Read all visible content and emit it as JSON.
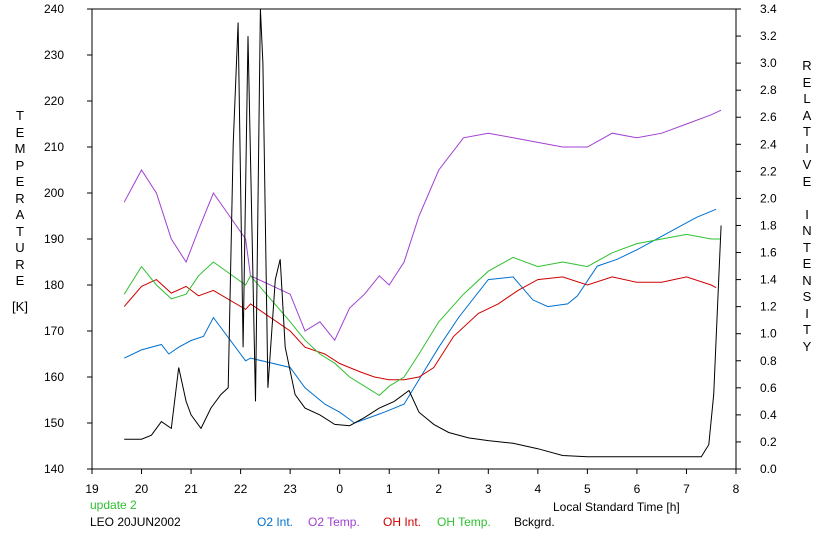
{
  "chart_data": {
    "type": "line",
    "xlabel": "Local Standard Time [h]",
    "x_ticks": [
      "19",
      "20",
      "21",
      "22",
      "23",
      "0",
      "1",
      "2",
      "3",
      "4",
      "5",
      "6",
      "7",
      "8"
    ],
    "xlim": [
      19,
      32
    ],
    "ylabel_left_letters": [
      "T",
      "E",
      "M",
      "P",
      "E",
      "R",
      "A",
      "T",
      "U",
      "R",
      "E"
    ],
    "ylabel_left_unit": "[K]",
    "ylim_left": [
      140,
      240
    ],
    "y_ticks_left": [
      140,
      150,
      160,
      170,
      180,
      190,
      200,
      210,
      220,
      230,
      240
    ],
    "ylabel_right_letters": [
      "R",
      "E",
      "L",
      "A",
      "T",
      "I",
      "V",
      "E",
      " ",
      "I",
      "N",
      "T",
      "E",
      "N",
      "S",
      "I",
      "T",
      "Y"
    ],
    "ylim_right": [
      0.0,
      3.4
    ],
    "y_ticks_right": [
      "0.0",
      "0.2",
      "0.4",
      "0.6",
      "0.8",
      "1.0",
      "1.2",
      "1.4",
      "1.6",
      "1.8",
      "2.0",
      "2.2",
      "2.4",
      "2.6",
      "2.8",
      "3.0",
      "3.2",
      "3.4"
    ],
    "grid": false,
    "legend_placement": "bottom",
    "annotations": [
      "update 2",
      "LEO 20JUN2002"
    ],
    "series": [
      {
        "name": "O2 Int.",
        "axis": "right",
        "color": "#0070d0",
        "x": [
          19.65,
          20.0,
          20.4,
          20.55,
          20.75,
          21.0,
          21.25,
          21.45,
          22.1,
          22.2,
          23.0,
          23.3,
          23.7,
          24.0,
          24.3,
          24.6,
          24.9,
          25.3,
          25.7,
          26.0,
          26.4,
          27.0,
          27.5,
          27.9,
          28.2,
          28.6,
          28.8,
          29.2,
          29.6,
          30.0,
          30.5,
          30.8,
          31.2,
          31.6
        ],
        "values": [
          0.82,
          0.88,
          0.92,
          0.85,
          0.9,
          0.95,
          0.98,
          1.12,
          0.8,
          0.82,
          0.75,
          0.6,
          0.48,
          0.42,
          0.34,
          0.38,
          0.42,
          0.48,
          0.72,
          0.9,
          1.12,
          1.4,
          1.42,
          1.25,
          1.2,
          1.22,
          1.28,
          1.5,
          1.55,
          1.62,
          1.72,
          1.78,
          1.86,
          1.92
        ]
      },
      {
        "name": "O2 Temp.",
        "axis": "left",
        "color": "#a040d0",
        "x": [
          19.65,
          20.0,
          20.3,
          20.6,
          20.9,
          21.15,
          21.45,
          22.1,
          22.2,
          23.0,
          23.3,
          23.6,
          23.9,
          24.2,
          24.5,
          24.8,
          25.0,
          25.3,
          25.6,
          26.0,
          26.5,
          27.0,
          27.5,
          28.0,
          28.5,
          29.0,
          29.5,
          30.0,
          30.5,
          31.0,
          31.5,
          31.7
        ],
        "values": [
          198,
          205,
          200,
          190,
          185,
          192,
          200,
          190,
          182,
          178,
          170,
          172,
          168,
          175,
          178,
          182,
          180,
          185,
          195,
          205,
          212,
          213,
          212,
          211,
          210,
          210,
          213,
          212,
          213,
          215,
          217,
          218
        ]
      },
      {
        "name": "OH Int.",
        "axis": "right",
        "color": "#d00000",
        "x": [
          19.65,
          20.0,
          20.3,
          20.6,
          20.9,
          21.15,
          21.45,
          22.1,
          22.2,
          23.0,
          23.3,
          23.7,
          24.0,
          24.4,
          24.7,
          25.0,
          25.3,
          25.6,
          25.9,
          26.3,
          26.8,
          27.2,
          27.6,
          28.0,
          28.5,
          29.0,
          29.5,
          30.0,
          30.5,
          31.0,
          31.5,
          31.6
        ],
        "values": [
          1.2,
          1.35,
          1.4,
          1.3,
          1.35,
          1.28,
          1.32,
          1.18,
          1.22,
          1.02,
          0.9,
          0.85,
          0.78,
          0.72,
          0.68,
          0.66,
          0.66,
          0.68,
          0.75,
          0.98,
          1.15,
          1.22,
          1.32,
          1.4,
          1.42,
          1.36,
          1.42,
          1.38,
          1.38,
          1.42,
          1.36,
          1.34
        ]
      },
      {
        "name": "OH Temp.",
        "axis": "left",
        "color": "#30c030",
        "x": [
          19.65,
          20.0,
          20.3,
          20.6,
          20.9,
          21.15,
          21.45,
          22.1,
          22.2,
          23.0,
          23.3,
          23.6,
          23.9,
          24.2,
          24.5,
          24.8,
          25.0,
          25.3,
          25.6,
          26.0,
          26.5,
          27.0,
          27.5,
          28.0,
          28.5,
          29.0,
          29.5,
          30.0,
          30.5,
          31.0,
          31.5,
          31.7
        ],
        "values": [
          178,
          184,
          180,
          177,
          178,
          182,
          185,
          180,
          182,
          172,
          168,
          165,
          163,
          160,
          158,
          156,
          158,
          160,
          165,
          172,
          178,
          183,
          186,
          184,
          185,
          184,
          187,
          189,
          190,
          191,
          190,
          190
        ]
      },
      {
        "name": "Bckgrd.",
        "axis": "right",
        "color": "#000000",
        "x": [
          19.65,
          20.0,
          20.2,
          20.4,
          20.6,
          20.75,
          20.9,
          21.0,
          21.2,
          21.4,
          21.6,
          21.75,
          21.85,
          21.95,
          22.05,
          22.15,
          22.3,
          22.4,
          22.45,
          22.55,
          22.7,
          22.8,
          22.9,
          23.1,
          23.3,
          23.6,
          23.9,
          24.2,
          24.5,
          24.8,
          25.1,
          25.4,
          25.6,
          25.9,
          26.2,
          26.6,
          27.0,
          27.5,
          28.0,
          28.5,
          29.0,
          29.5,
          30.0,
          30.5,
          31.0,
          31.3,
          31.45,
          31.55,
          31.65,
          31.7
        ],
        "values": [
          0.22,
          0.22,
          0.25,
          0.35,
          0.3,
          0.75,
          0.5,
          0.4,
          0.3,
          0.45,
          0.55,
          0.6,
          2.4,
          3.3,
          0.9,
          3.2,
          0.5,
          3.4,
          3.0,
          0.6,
          1.4,
          1.55,
          0.9,
          0.55,
          0.45,
          0.4,
          0.33,
          0.32,
          0.38,
          0.45,
          0.5,
          0.58,
          0.42,
          0.33,
          0.27,
          0.23,
          0.21,
          0.19,
          0.15,
          0.1,
          0.09,
          0.09,
          0.09,
          0.09,
          0.09,
          0.09,
          0.18,
          0.55,
          1.4,
          1.8
        ]
      }
    ]
  }
}
